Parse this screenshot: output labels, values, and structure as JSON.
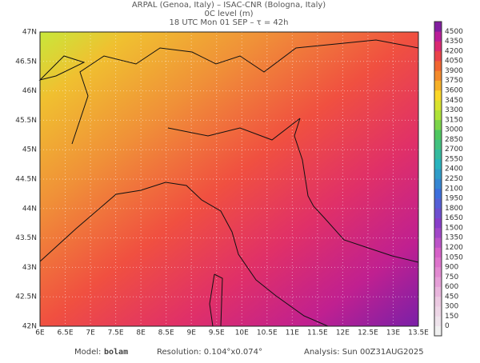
{
  "header": {
    "source": "ARPAL (Genoa, Italy)  –  ISAC-CNR (Bologna, Italy)",
    "field": "0C level (m)",
    "time": "18 UTC Mon 01 SEP  –  τ = 42h"
  },
  "axes": {
    "lat_labels": [
      "42N",
      "42.5N",
      "43N",
      "43.5N",
      "44N",
      "44.5N",
      "45N",
      "45.5N",
      "46N",
      "46.5N",
      "47N"
    ],
    "lon_labels": [
      "6E",
      "6.5E",
      "7E",
      "7.5E",
      "8E",
      "8.5E",
      "9E",
      "9.5E",
      "10E",
      "10.5E",
      "11E",
      "11.5E",
      "12E",
      "12.5E",
      "13E",
      "13.5E"
    ]
  },
  "colorbar": {
    "labels": [
      0,
      150,
      300,
      450,
      600,
      750,
      900,
      1050,
      1200,
      1350,
      1500,
      1650,
      1800,
      1950,
      2100,
      2250,
      2400,
      2550,
      2700,
      2850,
      3000,
      3150,
      3300,
      3450,
      3600,
      3750,
      3900,
      4050,
      4200,
      4350,
      4500
    ]
  },
  "footer": {
    "model_label": "Model:",
    "model": "bolam",
    "resolution": "Resolution: 0.104°x0.074°",
    "analysis": "Analysis: Sun 00Z31AUG2025"
  }
}
